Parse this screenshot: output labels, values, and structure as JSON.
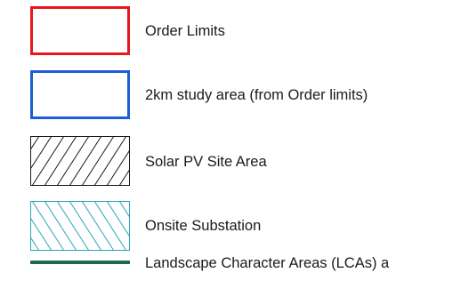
{
  "legend": {
    "items": [
      {
        "label": "Order Limits",
        "symbol": "red-outline-box",
        "color": "#e8191b"
      },
      {
        "label": "2km study area (from Order limits)",
        "symbol": "blue-outline-box",
        "color": "#1a5fd6"
      },
      {
        "label": "Solar PV Site Area",
        "symbol": "black-hatched-box",
        "color": "#1a1a1a"
      },
      {
        "label": "Onsite Substation",
        "symbol": "teal-hatched-box",
        "color": "#2aa6b8"
      },
      {
        "label": "Landscape Character Areas (LCAs) a",
        "symbol": "green-line",
        "color": "#1d6b4f"
      }
    ]
  }
}
